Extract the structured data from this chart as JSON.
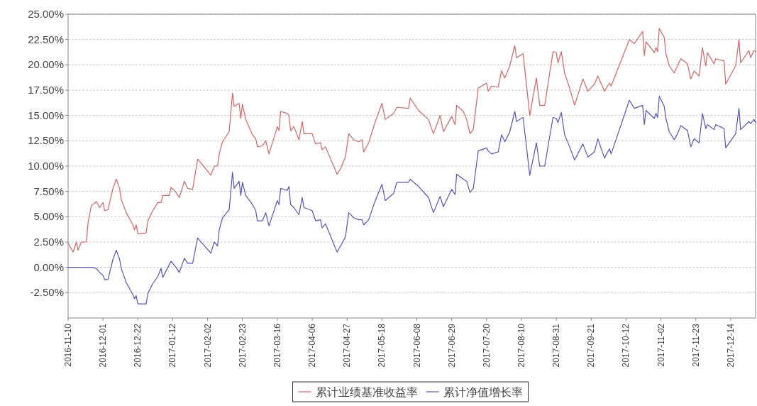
{
  "chart_data": {
    "type": "line",
    "x": [
      "2016-11-10",
      "2016-11-13",
      "2016-11-15",
      "2016-11-16",
      "2016-11-18",
      "2016-11-21",
      "2016-11-22",
      "2016-11-24",
      "2016-11-27",
      "2016-11-29",
      "2016-12-01",
      "2016-12-02",
      "2016-12-04",
      "2016-12-07",
      "2016-12-09",
      "2016-12-11",
      "2016-12-12",
      "2016-12-15",
      "2016-12-19",
      "2016-12-20",
      "2016-12-21",
      "2016-12-22",
      "2016-12-27",
      "2016-12-28",
      "2016-12-31",
      "2017-01-03",
      "2017-01-05",
      "2017-01-06",
      "2017-01-10",
      "2017-01-11",
      "2017-01-14",
      "2017-01-16",
      "2017-01-19",
      "2017-01-21",
      "2017-01-24",
      "2017-01-27",
      "2017-02-04",
      "2017-02-06",
      "2017-02-08",
      "2017-02-09",
      "2017-02-11",
      "2017-02-15",
      "2017-02-17",
      "2017-02-18",
      "2017-02-21",
      "2017-02-22",
      "2017-02-23",
      "2017-02-25",
      "2017-03-01",
      "2017-03-03",
      "2017-03-04",
      "2017-03-07",
      "2017-03-09",
      "2017-03-11",
      "2017-03-16",
      "2017-03-17",
      "2017-03-18",
      "2017-03-22",
      "2017-03-23",
      "2017-03-24",
      "2017-03-26",
      "2017-03-29",
      "2017-03-31",
      "2017-04-01",
      "2017-04-06",
      "2017-04-08",
      "2017-04-11",
      "2017-04-12",
      "2017-04-14",
      "2017-04-21",
      "2017-04-23",
      "2017-04-26",
      "2017-04-28",
      "2017-05-01",
      "2017-05-04",
      "2017-05-06",
      "2017-05-07",
      "2017-05-10",
      "2017-05-14",
      "2017-05-18",
      "2017-05-20",
      "2017-05-25",
      "2017-05-27",
      "2017-06-03",
      "2017-06-04",
      "2017-06-09",
      "2017-06-15",
      "2017-06-18",
      "2017-06-22",
      "2017-06-24",
      "2017-06-29",
      "2017-07-01",
      "2017-07-02",
      "2017-07-06",
      "2017-07-08",
      "2017-07-10",
      "2017-07-12",
      "2017-07-15",
      "2017-07-20",
      "2017-07-21",
      "2017-07-23",
      "2017-07-27",
      "2017-07-29",
      "2017-07-31",
      "2017-08-03",
      "2017-08-06",
      "2017-08-07",
      "2017-08-11",
      "2017-08-15",
      "2017-08-19",
      "2017-08-21",
      "2017-08-24",
      "2017-08-29",
      "2017-08-31",
      "2017-09-01",
      "2017-09-03",
      "2017-09-05",
      "2017-09-08",
      "2017-09-11",
      "2017-09-16",
      "2017-09-19",
      "2017-09-23",
      "2017-09-25",
      "2017-09-29",
      "2017-10-02",
      "2017-10-03",
      "2017-10-14",
      "2017-10-17",
      "2017-10-22",
      "2017-10-23",
      "2017-10-24",
      "2017-10-29",
      "2017-10-30",
      "2017-10-31",
      "2017-11-01",
      "2017-11-04",
      "2017-11-05",
      "2017-11-07",
      "2017-11-10",
      "2017-11-12",
      "2017-11-14",
      "2017-11-18",
      "2017-11-20",
      "2017-11-22",
      "2017-11-25",
      "2017-11-27",
      "2017-11-29",
      "2017-11-30",
      "2017-12-04",
      "2017-12-05",
      "2017-12-10",
      "2017-12-11",
      "2017-12-17",
      "2017-12-19",
      "2017-12-20",
      "2017-12-25",
      "2017-12-26",
      "2017-12-28",
      "2017-12-29"
    ],
    "series": [
      {
        "name": "累计业绩基准收益率",
        "color": "#e06060",
        "values": [
          2.4,
          1.5,
          2.5,
          1.7,
          2.5,
          2.5,
          4.4,
          6.1,
          6.5,
          5.9,
          6.4,
          5.6,
          5.7,
          7.8,
          8.7,
          7.8,
          6.7,
          5.4,
          4.2,
          3.7,
          4.2,
          3.3,
          3.4,
          4.6,
          5.6,
          6.4,
          6.4,
          7.1,
          7.1,
          7.9,
          7.4,
          6.9,
          8.5,
          7.8,
          7.7,
          10.7,
          9.1,
          10.0,
          10.0,
          11.2,
          12.4,
          13.4,
          17.2,
          15.9,
          16.2,
          14.7,
          16.1,
          14.6,
          13.1,
          12.7,
          11.9,
          12.0,
          12.5,
          11.2,
          13.9,
          13.5,
          15.4,
          15.2,
          15.0,
          13.5,
          13.9,
          12.6,
          14.4,
          13.2,
          13.2,
          12.2,
          12.3,
          11.6,
          11.9,
          9.2,
          9.7,
          10.9,
          13.2,
          12.6,
          12.4,
          12.6,
          11.4,
          12.3,
          14.4,
          16.2,
          14.6,
          15.2,
          15.8,
          15.7,
          16.7,
          15.5,
          14.6,
          13.2,
          15.0,
          13.4,
          14.9,
          14.1,
          16.0,
          15.4,
          14.6,
          13.2,
          13.6,
          17.7,
          18.2,
          17.4,
          17.9,
          17.8,
          19.4,
          18.7,
          19.9,
          21.9,
          20.7,
          21.1,
          15.0,
          18.7,
          16.0,
          16.0,
          21.3,
          21.2,
          20.2,
          21.3,
          19.2,
          17.7,
          16.0,
          18.6,
          17.4,
          18.1,
          18.9,
          17.4,
          18.2,
          17.9,
          22.5,
          22.1,
          23.3,
          20.9,
          22.3,
          21.2,
          21.7,
          21.3,
          23.6,
          22.7,
          21.1,
          19.9,
          19.2,
          19.9,
          20.6,
          20.1,
          18.6,
          19.4,
          18.9,
          21.7,
          19.9,
          21.2,
          20.1,
          20.6,
          20.4,
          18.1,
          19.9,
          22.5,
          20.2,
          21.4,
          20.7,
          21.4,
          21.3
        ]
      },
      {
        "name": "累计净值增长率",
        "color": "#5252d0",
        "values": [
          0,
          0,
          0,
          0,
          0,
          0,
          0,
          0,
          -0.1,
          -0.5,
          -0.8,
          -1.2,
          -1.2,
          0.8,
          1.7,
          0.8,
          -0.1,
          -1.5,
          -2.7,
          -3.1,
          -2.8,
          -3.6,
          -3.6,
          -2.6,
          -1.6,
          -0.9,
          -0.1,
          -1.0,
          0.3,
          0.6,
          0.0,
          -0.5,
          0.9,
          0.4,
          0.4,
          2.9,
          1.4,
          2.5,
          2.1,
          3.7,
          4.9,
          5.7,
          9.4,
          7.8,
          8.5,
          7.1,
          8.4,
          7.1,
          6.2,
          5.6,
          4.6,
          4.6,
          5.4,
          4.1,
          6.6,
          6.2,
          7.8,
          7.6,
          8.0,
          6.2,
          5.9,
          5.2,
          6.9,
          5.9,
          5.6,
          4.6,
          4.7,
          3.9,
          4.3,
          1.5,
          2.1,
          3.0,
          5.4,
          4.9,
          4.7,
          4.7,
          4.2,
          4.7,
          6.6,
          8.2,
          6.6,
          7.3,
          8.4,
          8.4,
          8.7,
          8.0,
          6.9,
          5.4,
          7.0,
          6.0,
          7.7,
          7.2,
          9.2,
          8.7,
          8.5,
          7.4,
          7.8,
          11.5,
          11.8,
          11.5,
          11.2,
          11.4,
          13.1,
          12.4,
          13.4,
          15.4,
          14.4,
          14.8,
          9.1,
          12.3,
          10.0,
          10.0,
          14.8,
          14.7,
          14.3,
          15.3,
          13.1,
          11.9,
          10.6,
          12.2,
          10.9,
          11.4,
          12.7,
          10.8,
          11.7,
          11.2,
          16.5,
          15.7,
          16.0,
          14.1,
          15.5,
          14.7,
          15.2,
          14.8,
          16.9,
          15.9,
          14.7,
          13.4,
          12.6,
          13.2,
          14.0,
          13.5,
          11.9,
          12.7,
          12.3,
          15.2,
          13.7,
          14.1,
          13.6,
          14.1,
          13.7,
          11.8,
          13.2,
          15.7,
          13.6,
          14.4,
          14.2,
          14.6,
          14.3
        ]
      }
    ],
    "xlim": [
      "2016-11-10",
      "2017-12-29"
    ],
    "xticks": [
      "2016-11-10",
      "2016-12-01",
      "2016-12-22",
      "2017-01-12",
      "2017-02-02",
      "2017-02-23",
      "2017-03-16",
      "2017-04-06",
      "2017-04-27",
      "2017-05-18",
      "2017-06-08",
      "2017-06-29",
      "2017-07-20",
      "2017-08-10",
      "2017-08-31",
      "2017-09-21",
      "2017-10-12",
      "2017-11-02",
      "2017-11-23",
      "2017-12-14"
    ],
    "ylim": [
      -5,
      25
    ],
    "yticks": [
      {
        "value": -2.5,
        "label": "-2.50%"
      },
      {
        "value": 0,
        "label": "0.00%"
      },
      {
        "value": 2.5,
        "label": "2.50%"
      },
      {
        "value": 5,
        "label": "5.00%"
      },
      {
        "value": 7.5,
        "label": "7.50%"
      },
      {
        "value": 10,
        "label": "10.00%"
      },
      {
        "value": 12.5,
        "label": "12.50%"
      },
      {
        "value": 15,
        "label": "15.00%"
      },
      {
        "value": 17.5,
        "label": "17.50%"
      },
      {
        "value": 20,
        "label": "20.00%"
      },
      {
        "value": 22.5,
        "label": "22.50%"
      },
      {
        "value": 25,
        "label": "25.00%"
      }
    ],
    "grid": "y",
    "legend": "bottom"
  }
}
